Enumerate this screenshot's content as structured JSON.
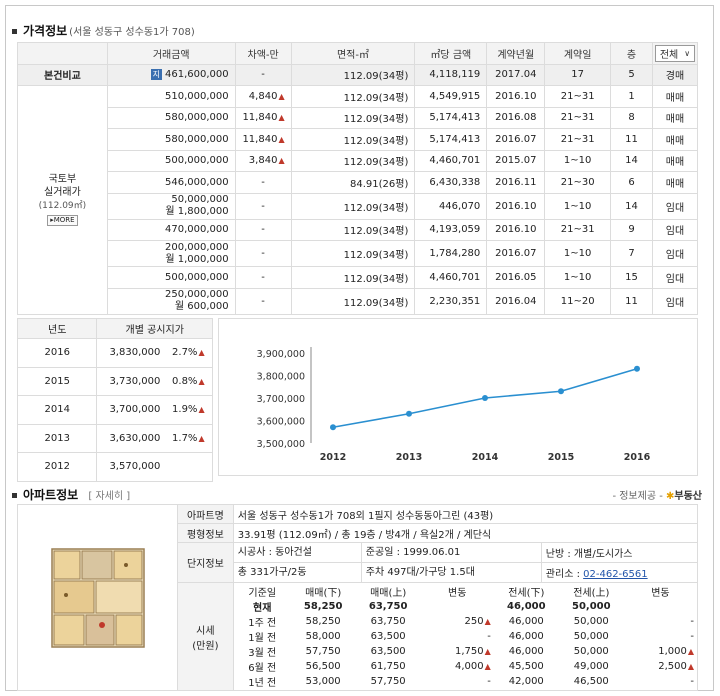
{
  "price_section": {
    "title": "가격정보",
    "address": "(서울 성동구 성수동1가 708)",
    "headers": [
      "거래금액",
      "차액-만",
      "면적-㎡",
      "㎡당 금액",
      "계약년월",
      "계약일",
      "층"
    ],
    "filter_selected": "전체",
    "base_label": "본건비교",
    "base_badge": "지",
    "base_row": [
      "461,600,000",
      "-",
      "112.09(34평)",
      "4,118,119",
      "2017.04",
      "17",
      "5",
      "경매"
    ],
    "group_label_1": "국토부",
    "group_label_2": "실거래가",
    "group_label_3": "(112.09㎡)",
    "more_label": "MORE",
    "rows": [
      {
        "p1": "510,000,000",
        "p2": "",
        "diff": "4,840",
        "up": true,
        "area": "112.09(34평)",
        "per": "4,549,915",
        "ym": "2016.10",
        "day": "21~31",
        "fl": "1",
        "type": "매매"
      },
      {
        "p1": "580,000,000",
        "p2": "",
        "diff": "11,840",
        "up": true,
        "area": "112.09(34평)",
        "per": "5,174,413",
        "ym": "2016.08",
        "day": "21~31",
        "fl": "8",
        "type": "매매"
      },
      {
        "p1": "580,000,000",
        "p2": "",
        "diff": "11,840",
        "up": true,
        "area": "112.09(34평)",
        "per": "5,174,413",
        "ym": "2016.07",
        "day": "21~31",
        "fl": "11",
        "type": "매매"
      },
      {
        "p1": "500,000,000",
        "p2": "",
        "diff": "3,840",
        "up": true,
        "area": "112.09(34평)",
        "per": "4,460,701",
        "ym": "2015.07",
        "day": "1~10",
        "fl": "14",
        "type": "매매"
      },
      {
        "p1": "546,000,000",
        "p2": "",
        "diff": "-",
        "up": false,
        "area": "84.91(26평)",
        "per": "6,430,338",
        "ym": "2016.11",
        "day": "21~30",
        "fl": "6",
        "type": "매매"
      },
      {
        "p1": "50,000,000",
        "p2": "월 1,800,000",
        "diff": "-",
        "up": false,
        "area": "112.09(34평)",
        "per": "446,070",
        "ym": "2016.10",
        "day": "1~10",
        "fl": "14",
        "type": "임대"
      },
      {
        "p1": "470,000,000",
        "p2": "",
        "diff": "-",
        "up": false,
        "area": "112.09(34평)",
        "per": "4,193,059",
        "ym": "2016.10",
        "day": "21~31",
        "fl": "9",
        "type": "임대"
      },
      {
        "p1": "200,000,000",
        "p2": "월 1,000,000",
        "diff": "-",
        "up": false,
        "area": "112.09(34평)",
        "per": "1,784,280",
        "ym": "2016.07",
        "day": "1~10",
        "fl": "7",
        "type": "임대"
      },
      {
        "p1": "500,000,000",
        "p2": "",
        "diff": "-",
        "up": false,
        "area": "112.09(34평)",
        "per": "4,460,701",
        "ym": "2016.05",
        "day": "1~10",
        "fl": "15",
        "type": "임대"
      },
      {
        "p1": "250,000,000",
        "p2": "월 600,000",
        "diff": "-",
        "up": false,
        "area": "112.09(34평)",
        "per": "2,230,351",
        "ym": "2016.04",
        "day": "11~20",
        "fl": "11",
        "type": "임대"
      }
    ]
  },
  "land": {
    "headers": [
      "년도",
      "개별 공시지가"
    ],
    "rows": [
      {
        "year": "2016",
        "value": "3,830,000",
        "pct": "2.7%"
      },
      {
        "year": "2015",
        "value": "3,730,000",
        "pct": "0.8%"
      },
      {
        "year": "2014",
        "value": "3,700,000",
        "pct": "1.9%"
      },
      {
        "year": "2013",
        "value": "3,630,000",
        "pct": "1.7%"
      },
      {
        "year": "2012",
        "value": "3,570,000",
        "pct": ""
      }
    ]
  },
  "chart_data": {
    "type": "line",
    "x": [
      "2012",
      "2013",
      "2014",
      "2015",
      "2016"
    ],
    "values": [
      3570000,
      3630000,
      3700000,
      3730000,
      3830000
    ],
    "ylim": [
      3500000,
      3900000
    ],
    "yticks": [
      "3,900,000",
      "3,800,000",
      "3,700,000",
      "3,600,000",
      "3,500,000"
    ],
    "ytick_values": [
      3900000,
      3800000,
      3700000,
      3600000,
      3500000
    ],
    "color": "#2a8fd0"
  },
  "apt_section": {
    "title": "아파트정보",
    "detail_link": "[ 자세히 ]",
    "provider_label": "- 정보제공 -",
    "provider_name": "부동산",
    "name_label": "아파트명",
    "name_value": "서울 성동구 성수동1가 708외 1필지 성수동동아그린 (43평)",
    "size_label": "평형정보",
    "size_value": "33.91평 (112.09㎡) / 총 19층 / 방4개 / 욕실2개 / 계단식",
    "complex_label": "단지정보",
    "builder": "시공사 : 동아건설",
    "completed": "준공일 : 1999.06.01",
    "heating": "난방 : 개별/도시가스",
    "households": "총 331가구/2동",
    "parking": "주차 497대/가구당 1.5대",
    "office_label": "관리소 :",
    "office_phone": "02-462-6561",
    "market_label_1": "시세",
    "market_label_2": "(만원)",
    "market_headers": [
      "기준일",
      "매매(下)",
      "매매(上)",
      "변동",
      "전세(下)",
      "전세(上)",
      "변동"
    ],
    "market_rows": [
      {
        "d": "현재",
        "a": "58,250",
        "b": "63,750",
        "c": "",
        "cu": false,
        "e": "46,000",
        "f": "50,000",
        "g": "",
        "gu": false,
        "bold": true
      },
      {
        "d": "1주 전",
        "a": "58,250",
        "b": "63,750",
        "c": "250",
        "cu": true,
        "e": "46,000",
        "f": "50,000",
        "g": "-",
        "gu": false,
        "bold": false
      },
      {
        "d": "1월 전",
        "a": "58,000",
        "b": "63,500",
        "c": "-",
        "cu": false,
        "e": "46,000",
        "f": "50,000",
        "g": "-",
        "gu": false,
        "bold": false
      },
      {
        "d": "3월 전",
        "a": "57,750",
        "b": "63,500",
        "c": "1,750",
        "cu": true,
        "e": "46,000",
        "f": "50,000",
        "g": "1,000",
        "gu": true,
        "bold": false
      },
      {
        "d": "6월 전",
        "a": "56,500",
        "b": "61,750",
        "c": "4,000",
        "cu": true,
        "e": "45,500",
        "f": "49,000",
        "g": "2,500",
        "gu": true,
        "bold": false
      },
      {
        "d": "1년 전",
        "a": "53,000",
        "b": "57,750",
        "c": "-",
        "cu": false,
        "e": "42,000",
        "f": "46,500",
        "g": "-",
        "gu": false,
        "bold": false
      }
    ]
  }
}
